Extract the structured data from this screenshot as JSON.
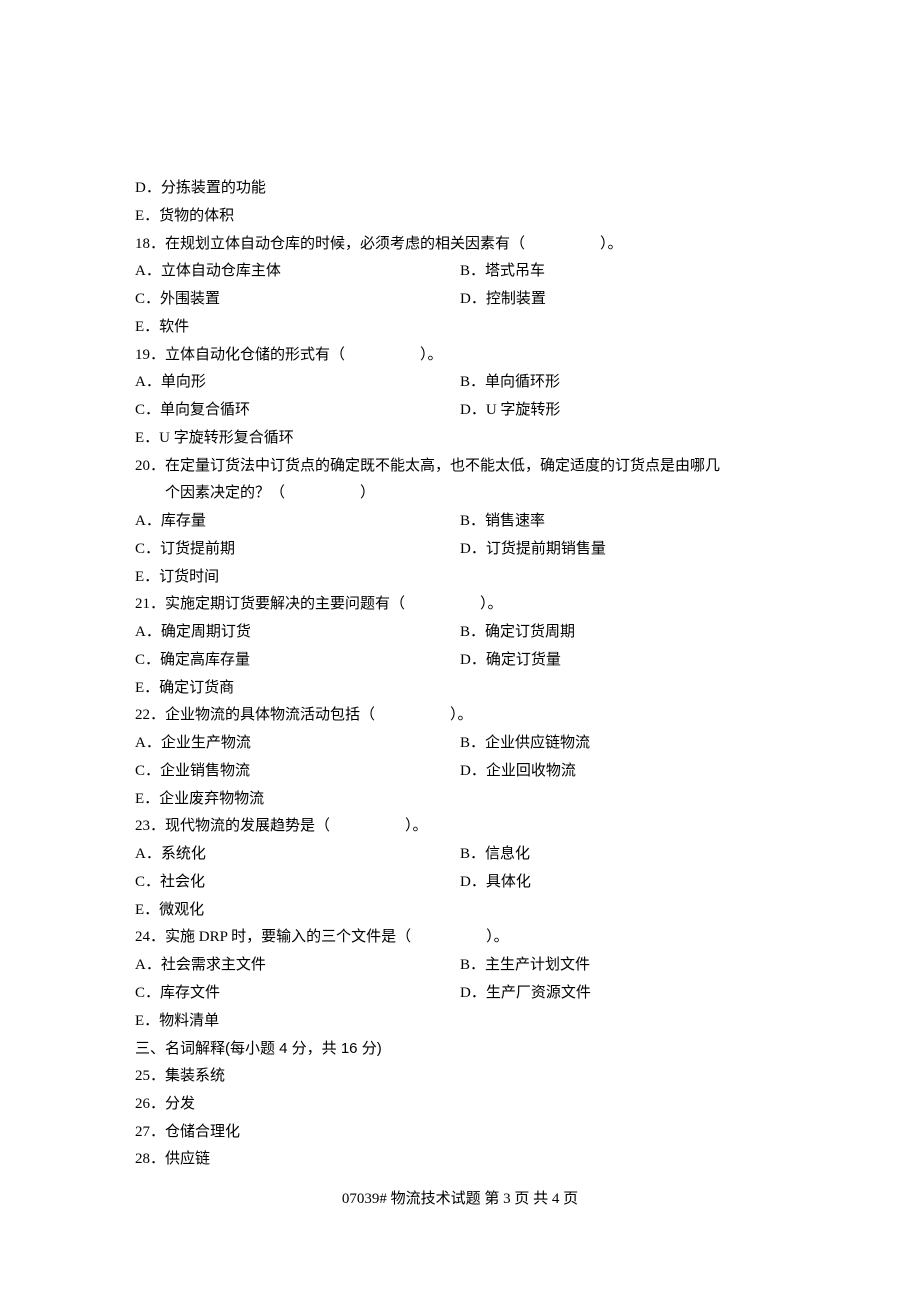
{
  "q17_tail": {
    "d": "D．分拣装置的功能",
    "e": "E．货物的体积"
  },
  "q18": {
    "text": "18．在规划立体自动仓库的时候，必须考虑的相关因素有（　　　　　）。",
    "a": "A．立体自动仓库主体",
    "b": "B．塔式吊车",
    "c": "C．外围装置",
    "d": "D．控制装置",
    "e": "E．软件"
  },
  "q19": {
    "text": "19．立体自动化仓储的形式有（　　　　　）。",
    "a": "A．单向形",
    "b": "B．单向循环形",
    "c": "C．单向复合循环",
    "d": "D．U 字旋转形",
    "e": "E．U 字旋转形复合循环"
  },
  "q20": {
    "text": "20．在定量订货法中订货点的确定既不能太高，也不能太低，确定适度的订货点是由哪几",
    "text2": "个因素决定的？（　　　　　）",
    "a": "A．库存量",
    "b": "B．销售速率",
    "c": "C．订货提前期",
    "d": "D．订货提前期销售量",
    "e": "E．订货时间"
  },
  "q21": {
    "text": "21．实施定期订货要解决的主要问题有（　　　　　）。",
    "a": "A．确定周期订货",
    "b": "B．确定订货周期",
    "c": "C．确定高库存量",
    "d": "D．确定订货量",
    "e": "E．确定订货商"
  },
  "q22": {
    "text": "22．企业物流的具体物流活动包括（　　　　　）。",
    "a": "A．企业生产物流",
    "b": "B．企业供应链物流",
    "c": "C．企业销售物流",
    "d": "D．企业回收物流",
    "e": "E．企业废弃物物流"
  },
  "q23": {
    "text": "23．现代物流的发展趋势是（　　　　　）。",
    "a": "A．系统化",
    "b": "B．信息化",
    "c": "C．社会化",
    "d": "D．具体化",
    "e": "E．微观化"
  },
  "q24": {
    "text": "24．实施 DRP 时，要输入的三个文件是（　　　　　）。",
    "a": "A．社会需求主文件",
    "b": "B．主生产计划文件",
    "c": "C．库存文件",
    "d": "D．生产厂资源文件",
    "e": "E．物料清单"
  },
  "section3": {
    "title": "三、名词解释(每小题 4 分，共 16 分)",
    "i25": "25．集装系统",
    "i26": "26．分发",
    "i27": "27．仓储合理化",
    "i28": "28．供应链"
  },
  "footer": "07039#  物流技术试题    第  3  页  共  4  页"
}
